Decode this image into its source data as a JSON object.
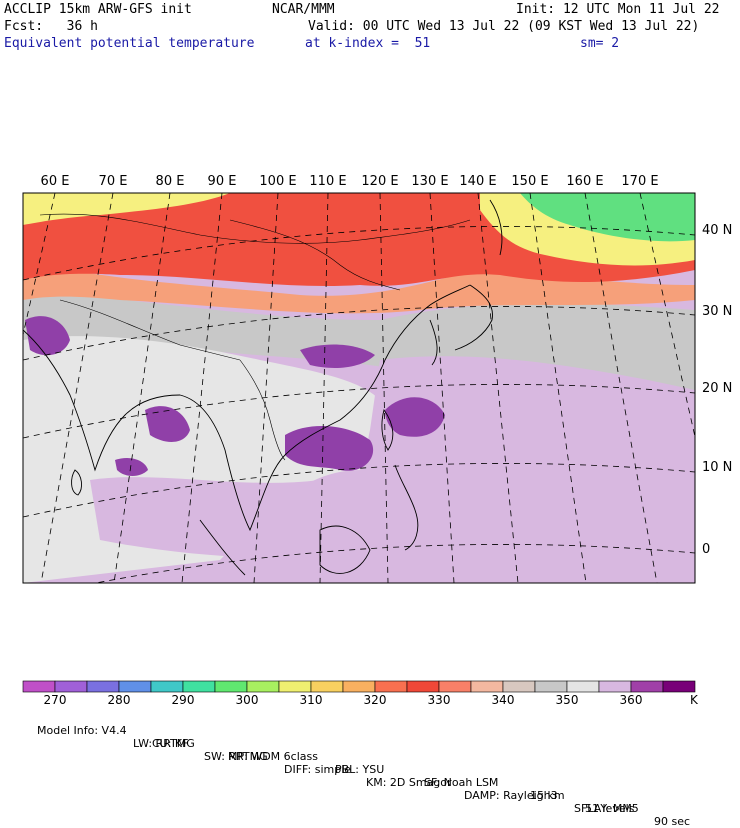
{
  "header": {
    "model": "ACCLIP 15km ARW-GFS init",
    "org": "NCAR/MMM",
    "init": "Init: 12 UTC Mon 11 Jul 22",
    "fcst": "Fcst:   36 h",
    "valid": "Valid: 00 UTC Wed 13 Jul 22 (09 KST Wed 13 Jul 22)",
    "field": "Equivalent potential temperature",
    "level": "at k-index =  51",
    "smooth": "sm= 2"
  },
  "map": {
    "lon_labels": [
      "60 E",
      "70 E",
      "80 E",
      "90 E",
      "100 E",
      "110 E",
      "120 E",
      "130 E",
      "140 E",
      "150 E",
      "160 E",
      "170 E"
    ],
    "lat_labels": [
      "40 N",
      "30 N",
      "20 N",
      "10 N",
      "0"
    ],
    "colors": {
      "high_band": "#f05040",
      "mid_band": "#f6a07a",
      "gray": "#c8c8c8",
      "lightgray": "#e6e6e6",
      "lilac": "#d8b8e0",
      "purple": "#9040a8",
      "green": "#60e080",
      "yellow": "#f6f080"
    }
  },
  "colorbar": {
    "colors": [
      "#c050c8",
      "#a060d8",
      "#7a70e0",
      "#6090e8",
      "#40c8c8",
      "#40e0a0",
      "#60e870",
      "#a8f060",
      "#f0f070",
      "#f8d060",
      "#f8b060",
      "#f87050",
      "#f04838",
      "#f88068",
      "#f4b8a0",
      "#d8c8c0",
      "#c8c8c8",
      "#e4e4e4",
      "#d8b8e0",
      "#a040a8",
      "#780078"
    ],
    "labels": [
      "270",
      "280",
      "290",
      "300",
      "310",
      "320",
      "330",
      "340",
      "350",
      "360"
    ],
    "unit": "K"
  },
  "footer": {
    "line1": [
      "Model Info: V4.4",
      "CU: KF",
      "MP: WDM 6class",
      "PBL: YSU",
      "SF: Noah LSM",
      "15 km",
      "51 levels",
      "90 sec"
    ],
    "line2": [
      "LW: RRTMG",
      "SW: RRTMG",
      "DIFF: simple",
      "KM: 2D Smagor",
      "DAMP: Rayleigh3",
      "SFLAY: MM5"
    ]
  }
}
